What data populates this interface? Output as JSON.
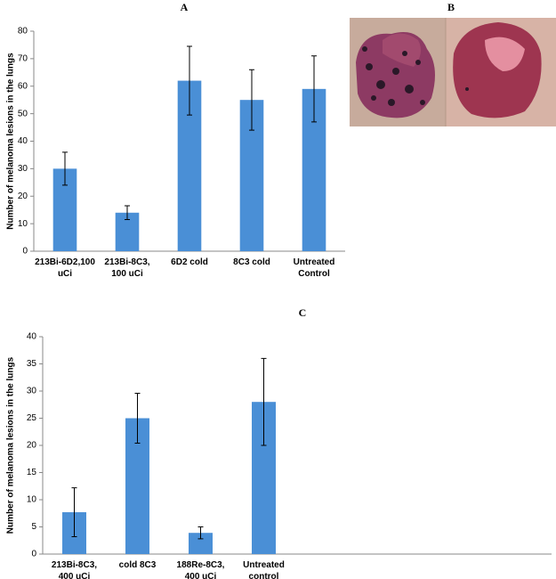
{
  "chart_data": [
    {
      "type": "bar",
      "title": "A",
      "ylabel": "Number of melanoma lesions in the lungs",
      "categories": [
        "213Bi-6D2,100 uCi",
        "213Bi-8C3, 100 uCi",
        "6D2 cold",
        "8C3 cold",
        "Untreated Control"
      ],
      "values": [
        30,
        14,
        62,
        55,
        59
      ],
      "errors": [
        6,
        2.5,
        12.5,
        11,
        12
      ],
      "color": "#4a8fd6",
      "ylim": [
        0,
        80
      ],
      "yticks": [
        0,
        10,
        20,
        30,
        40,
        50,
        60,
        70,
        80
      ],
      "grid": false
    },
    {
      "type": "bar",
      "title": "C",
      "ylabel": "Number of melanoma lesions in the lungs",
      "categories": [
        "213Bi-8C3, 400 uCi",
        "cold 8C3",
        "188Re-8C3, 400 uCi",
        "Untreated control"
      ],
      "values": [
        7.7,
        25,
        3.9,
        28
      ],
      "errors": [
        4.5,
        4.6,
        1.1,
        8
      ],
      "color": "#4a8fd6",
      "ylim": [
        0,
        40
      ],
      "yticks": [
        0,
        5,
        10,
        15,
        20,
        25,
        30,
        35,
        40
      ],
      "grid": false
    }
  ],
  "photo_panel": {
    "label": "B"
  }
}
